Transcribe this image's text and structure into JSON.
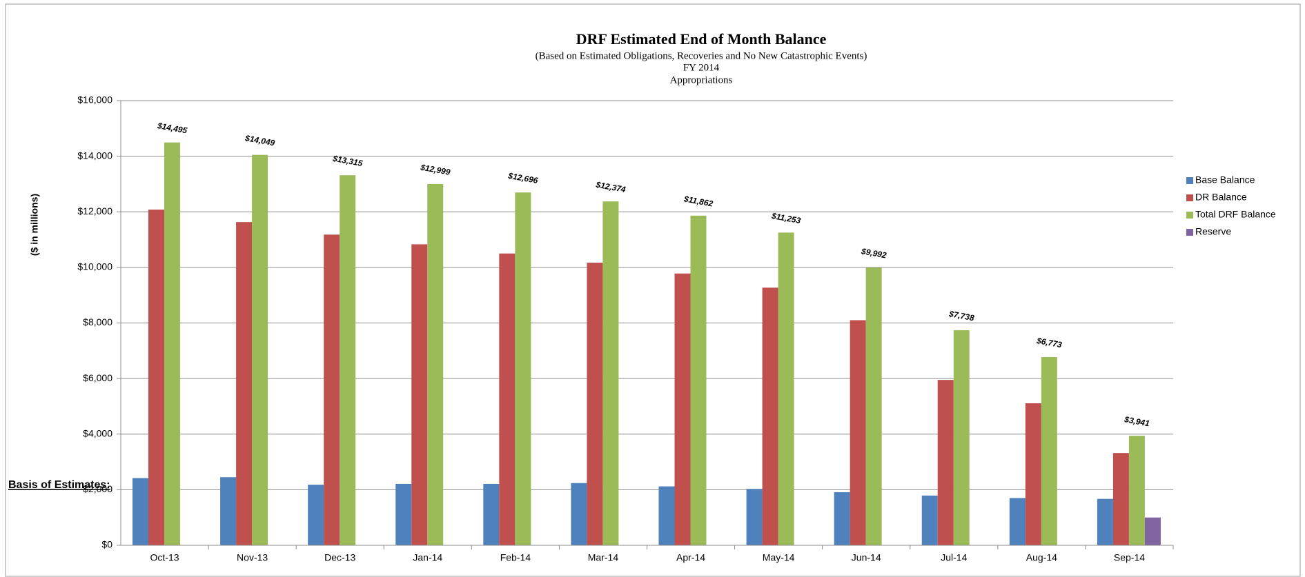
{
  "chart_data": {
    "type": "bar",
    "title": "DRF Estimated End of Month Balance",
    "subtitle": [
      "(Based on Estimated Obligations, Recoveries and No New Catastrophic Events)",
      "FY 2014",
      "Appropriations"
    ],
    "y_label": "($ in millions)",
    "annotation": "Basis of Estimates:",
    "categories": [
      "Oct-13",
      "Nov-13",
      "Dec-13",
      "Jan-14",
      "Feb-14",
      "Mar-14",
      "Apr-14",
      "May-14",
      "Jun-14",
      "Jul-14",
      "Aug-14",
      "Sep-14"
    ],
    "series": [
      {
        "name": "Base Balance",
        "color": "#4f81bd",
        "values": [
          2420,
          2450,
          2180,
          2210,
          2210,
          2240,
          2120,
          2030,
          1910,
          1790,
          1700,
          1670
        ]
      },
      {
        "name": "DR Balance",
        "color": "#c0504d",
        "values": [
          12080,
          11630,
          11180,
          10830,
          10500,
          10170,
          9780,
          9270,
          8100,
          5950,
          5110,
          3320
        ]
      },
      {
        "name": "Total DRF Balance",
        "color": "#9bbb59",
        "values": [
          14495,
          14049,
          13315,
          12999,
          12696,
          12374,
          11862,
          11253,
          9992,
          7738,
          6773,
          3941
        ],
        "value_labels": [
          "$14,495",
          "$14,049",
          "$13,315",
          "$12,999",
          "$12,696",
          "$12,374",
          "$11,862",
          "$11,253",
          "$9,992",
          "$7,738",
          "$6,773",
          "$3,941"
        ]
      },
      {
        "name": "Reserve",
        "color": "#8064a2",
        "values": [
          null,
          null,
          null,
          null,
          null,
          null,
          null,
          null,
          null,
          null,
          null,
          1000
        ]
      }
    ],
    "ylim": [
      0,
      16000
    ],
    "yticks": [
      {
        "value": 0,
        "label": "$0"
      },
      {
        "value": 2000,
        "label": "$2,000"
      },
      {
        "value": 4000,
        "label": "$4,000"
      },
      {
        "value": 6000,
        "label": "$6,000"
      },
      {
        "value": 8000,
        "label": "$8,000"
      },
      {
        "value": 10000,
        "label": "$10,000"
      },
      {
        "value": 12000,
        "label": "$12,000"
      },
      {
        "value": 14000,
        "label": "$14,000"
      },
      {
        "value": 16000,
        "label": "$16,000"
      }
    ],
    "grid": true,
    "legend": "right"
  }
}
